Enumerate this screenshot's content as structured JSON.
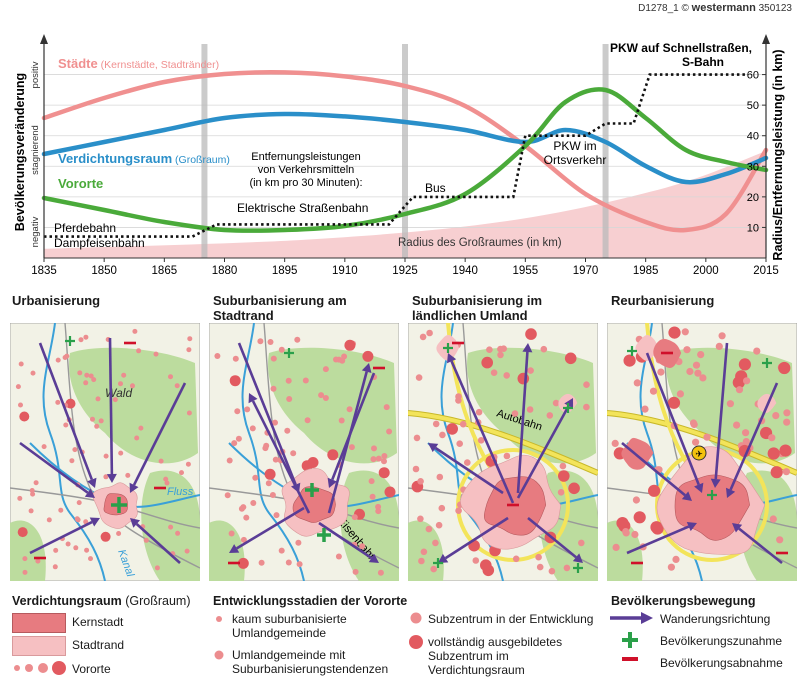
{
  "credit": {
    "code": "D1278_1",
    "brand": "westermann",
    "number": "350123"
  },
  "chart_data": {
    "type": "line",
    "x_ticks": [
      1835,
      1850,
      1865,
      1880,
      1895,
      1910,
      1925,
      1940,
      1955,
      1970,
      1985,
      2000,
      2015
    ],
    "xlim": [
      1835,
      2015
    ],
    "left_axis": {
      "label": "Bevölkerungsveränderung",
      "levels": [
        "positiv",
        "stagnierend",
        "negativ"
      ]
    },
    "right_axis": {
      "label": "Radius/Entfernungsleistung (in km)",
      "ticks": [
        10,
        20,
        30,
        40,
        50,
        60
      ],
      "ylim": [
        0,
        70
      ]
    },
    "stage_dividers": [
      1875,
      1925,
      1975
    ],
    "series": [
      {
        "name": "Städte",
        "note": "(Kernstädte, Stadtränder)",
        "color": "#f09090",
        "x": [
          1835,
          1850,
          1865,
          1880,
          1895,
          1910,
          1925,
          1940,
          1955,
          1970,
          1985,
          1995,
          2005,
          2015
        ],
        "level": [
          0.4,
          0.65,
          0.85,
          0.95,
          0.97,
          0.92,
          0.8,
          0.55,
          0.05,
          -0.55,
          -0.9,
          -1.0,
          -0.8,
          0.0
        ]
      },
      {
        "name": "Verdichtungsraum",
        "note": "(Großraum)",
        "color": "#2a8fc9",
        "x": [
          1835,
          1850,
          1865,
          1880,
          1895,
          1910,
          1925,
          1940,
          1955,
          1965,
          1975,
          1985,
          1995,
          2005,
          2015
        ],
        "level": [
          -0.05,
          0.1,
          0.25,
          0.4,
          0.45,
          0.42,
          0.35,
          0.25,
          0.1,
          0.25,
          0.1,
          -0.2,
          -0.4,
          -0.3,
          -0.1
        ]
      },
      {
        "name": "Vororte",
        "color": "#4aaa3a",
        "x": [
          1835,
          1850,
          1865,
          1880,
          1895,
          1910,
          1925,
          1940,
          1955,
          1965,
          1975,
          1985,
          1995,
          2005,
          2015
        ],
        "level": [
          -0.6,
          -0.75,
          -0.9,
          -1.0,
          -1.0,
          -0.95,
          -0.8,
          -0.55,
          0.05,
          0.6,
          0.75,
          0.4,
          0.0,
          -0.15,
          -0.25
        ]
      }
    ],
    "transport": {
      "name": "Entfernungsleistungen von Verkehrsmitteln (in km pro 30 Minuten):",
      "x": [
        1835,
        1872,
        1878,
        1892,
        1921,
        1927,
        1952,
        1955,
        1970,
        1975,
        1982,
        1986,
        2010
      ],
      "km": [
        7,
        7,
        11,
        11,
        11,
        20,
        20,
        40,
        40,
        44,
        44,
        60,
        60
      ],
      "labels": [
        "Pferdebahn",
        "Dampfeisenbahn",
        "Elektrische Straßenbahn",
        "Bus",
        "PKW im Ortsverkehr",
        "PKW auf Schnellstraßen, S-Bahn"
      ]
    },
    "radius_area": {
      "name": "Radius des Großraumes (in km)",
      "x": [
        1835,
        1900,
        1950,
        1990,
        2015
      ],
      "km": [
        3,
        6,
        12,
        23,
        35
      ]
    }
  },
  "stages": [
    "Urbanisierung",
    "Suburbanisierung am Stadtrand",
    "Suburbanisierung im ländlichen Umland",
    "Reurbanisierung"
  ],
  "maps": {
    "wald": "Wald",
    "fluss": "Fluss",
    "kanal": "Kanal",
    "eisenbahn": "Eisenbahn",
    "autobahn": "Autobahn"
  },
  "legend": {
    "verdichtung": {
      "title": "Verdichtungsraum",
      "note": "(Großraum)",
      "kernstadt": "Kernstadt",
      "stadtrand": "Stadtrand",
      "vororte": "Vororte"
    },
    "entwicklung": {
      "title": "Entwicklungsstadien der Vororte",
      "s1": "kaum suburbanisierte Umlandgemeinde",
      "s2": "Umlandgemeinde mit Suburbanisierungstendenzen",
      "s3": "Subzentrum in der Entwicklung",
      "s4": "vollständig ausgebildetes Subzentrum im Verdichtungsraum"
    },
    "bewegung": {
      "title": "Bevölkerungsbewegung",
      "richtung": "Wanderungsrichtung",
      "zunahme": "Bevölkerungszunahme",
      "abnahme": "Bevölkerungsabnahme"
    }
  },
  "colors": {
    "kernstadt": "#e77b80",
    "stadtrand": "#f6c0c2",
    "vororte": "#ec8d8f",
    "wald": "#bcdc9e",
    "land": "#f2f2e6",
    "fluss": "#3aa0d8",
    "arrow": "#5a3d96",
    "plus": "#2aa04a",
    "minus": "#d0102a",
    "autobahn": "#f3e45a"
  }
}
